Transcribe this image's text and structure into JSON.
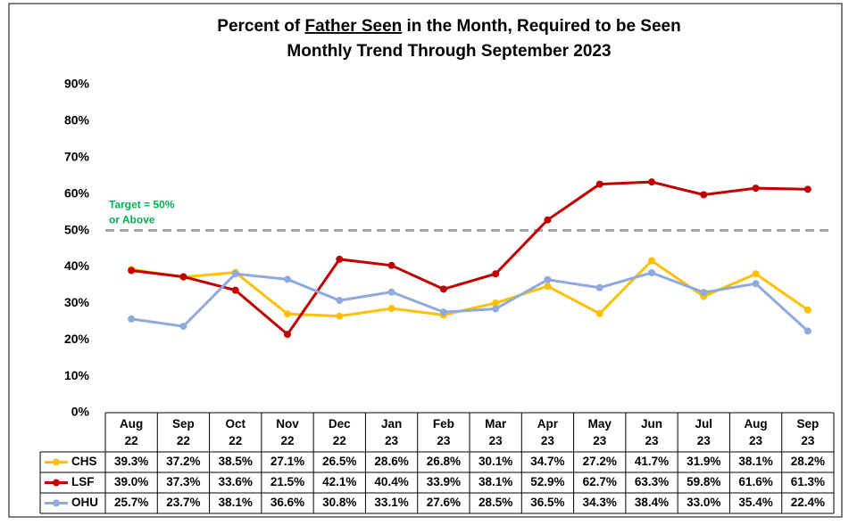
{
  "chart_data": {
    "type": "line",
    "title": [
      {
        "text": "Percent of "
      },
      {
        "text": "Father Seen",
        "underline": true
      },
      {
        "text": " in the Month, Required to be Seen"
      }
    ],
    "subtitle": "Monthly Trend Through September 2023",
    "categories": [
      "Aug 22",
      "Sep 22",
      "Oct 22",
      "Nov 22",
      "Dec 22",
      "Jan 23",
      "Feb 23",
      "Mar 23",
      "Apr 23",
      "May 23",
      "Jun 23",
      "Jul 23",
      "Aug 23",
      "Sep 23"
    ],
    "series": [
      {
        "name": "CHS",
        "color": "#FFC000",
        "values": [
          39.3,
          37.2,
          38.5,
          27.1,
          26.5,
          28.6,
          26.8,
          30.1,
          34.7,
          27.2,
          41.7,
          31.9,
          38.1,
          28.2
        ],
        "value_labels": [
          "39.3%",
          "37.2%",
          "38.5%",
          "27.1%",
          "26.5%",
          "28.6%",
          "26.8%",
          "30.1%",
          "34.7%",
          "27.2%",
          "41.7%",
          "31.9%",
          "38.1%",
          "28.2%"
        ]
      },
      {
        "name": "LSF",
        "color": "#C00000",
        "values": [
          39.0,
          37.3,
          33.6,
          21.5,
          42.1,
          40.4,
          33.9,
          38.1,
          52.9,
          62.7,
          63.3,
          59.8,
          61.6,
          61.3
        ],
        "value_labels": [
          "39.0%",
          "37.3%",
          "33.6%",
          "21.5%",
          "42.1%",
          "40.4%",
          "33.9%",
          "38.1%",
          "52.9%",
          "62.7%",
          "63.3%",
          "59.8%",
          "61.6%",
          "61.3%"
        ]
      },
      {
        "name": "OHU",
        "color": "#8FAADC",
        "values": [
          25.7,
          23.7,
          38.1,
          36.6,
          30.8,
          33.1,
          27.6,
          28.5,
          36.5,
          34.3,
          38.4,
          33.0,
          35.4,
          22.4
        ],
        "value_labels": [
          "25.7%",
          "23.7%",
          "38.1%",
          "36.6%",
          "30.8%",
          "33.1%",
          "27.6%",
          "28.5%",
          "36.5%",
          "34.3%",
          "38.4%",
          "33.0%",
          "35.4%",
          "22.4%"
        ]
      }
    ],
    "ylim": [
      0,
      90
    ],
    "yticks": [
      {
        "value": 0,
        "label": "0%"
      },
      {
        "value": 10,
        "label": "10%"
      },
      {
        "value": 20,
        "label": "20%"
      },
      {
        "value": 30,
        "label": "30%"
      },
      {
        "value": 40,
        "label": "40%"
      },
      {
        "value": 50,
        "label": "50%"
      },
      {
        "value": 60,
        "label": "60%"
      },
      {
        "value": 70,
        "label": "70%"
      },
      {
        "value": 80,
        "label": "80%"
      },
      {
        "value": 90,
        "label": "90%"
      }
    ],
    "target": {
      "value": 50,
      "color": "#A6A6A6",
      "label": [
        "Target = 50%",
        "or Above"
      ],
      "label_color": "#00B050"
    }
  }
}
